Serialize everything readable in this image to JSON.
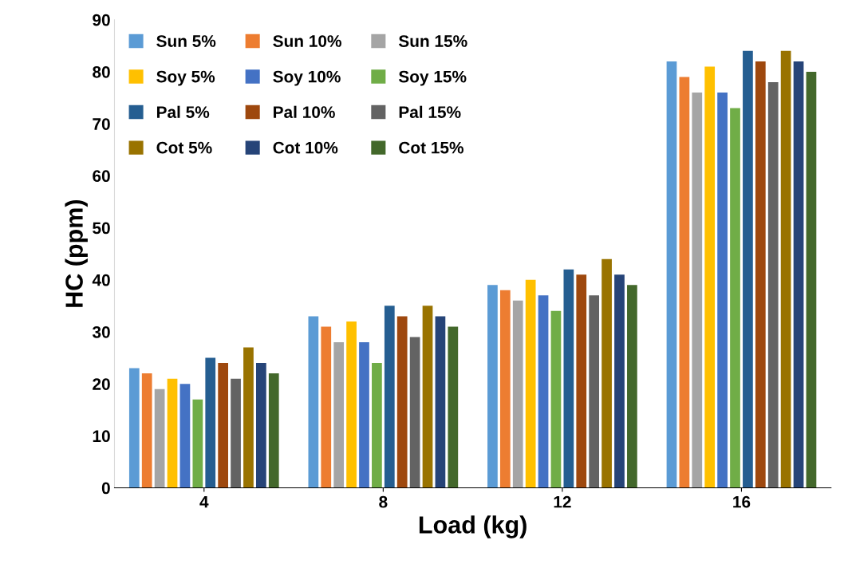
{
  "chart_data": {
    "type": "bar",
    "xlabel": "Load (kg)",
    "ylabel": "HC (ppm)",
    "categories": [
      "4",
      "8",
      "12",
      "16"
    ],
    "series": [
      {
        "name": "Sun 5%",
        "color": "#5b9bd5",
        "values": [
          23,
          33,
          39,
          82
        ]
      },
      {
        "name": "Sun 10%",
        "color": "#ed7d31",
        "values": [
          22,
          31,
          38,
          79
        ]
      },
      {
        "name": "Sun 15%",
        "color": "#a5a5a5",
        "values": [
          19,
          28,
          36,
          76
        ]
      },
      {
        "name": "Soy 5%",
        "color": "#ffc000",
        "values": [
          21,
          32,
          40,
          81
        ]
      },
      {
        "name": "Soy 10%",
        "color": "#4472c4",
        "values": [
          20,
          28,
          37,
          76
        ]
      },
      {
        "name": "Soy 15%",
        "color": "#70ad47",
        "values": [
          17,
          24,
          34,
          73
        ]
      },
      {
        "name": "Pal 5%",
        "color": "#255e91",
        "values": [
          25,
          35,
          42,
          84
        ]
      },
      {
        "name": "Pal 10%",
        "color": "#9e480e",
        "values": [
          24,
          33,
          41,
          82
        ]
      },
      {
        "name": "Pal 15%",
        "color": "#636363",
        "values": [
          21,
          29,
          37,
          78
        ]
      },
      {
        "name": "Cot 5%",
        "color": "#997300",
        "values": [
          27,
          35,
          44,
          84
        ]
      },
      {
        "name": "Cot 10%",
        "color": "#264478",
        "values": [
          24,
          33,
          41,
          82
        ]
      },
      {
        "name": "Cot 15%",
        "color": "#43682b",
        "values": [
          22,
          31,
          39,
          80
        ]
      }
    ],
    "ylim": [
      0,
      90
    ],
    "yticks": [
      0,
      10,
      20,
      30,
      40,
      50,
      60,
      70,
      80,
      90
    ],
    "grid": false,
    "legend": "top left"
  }
}
